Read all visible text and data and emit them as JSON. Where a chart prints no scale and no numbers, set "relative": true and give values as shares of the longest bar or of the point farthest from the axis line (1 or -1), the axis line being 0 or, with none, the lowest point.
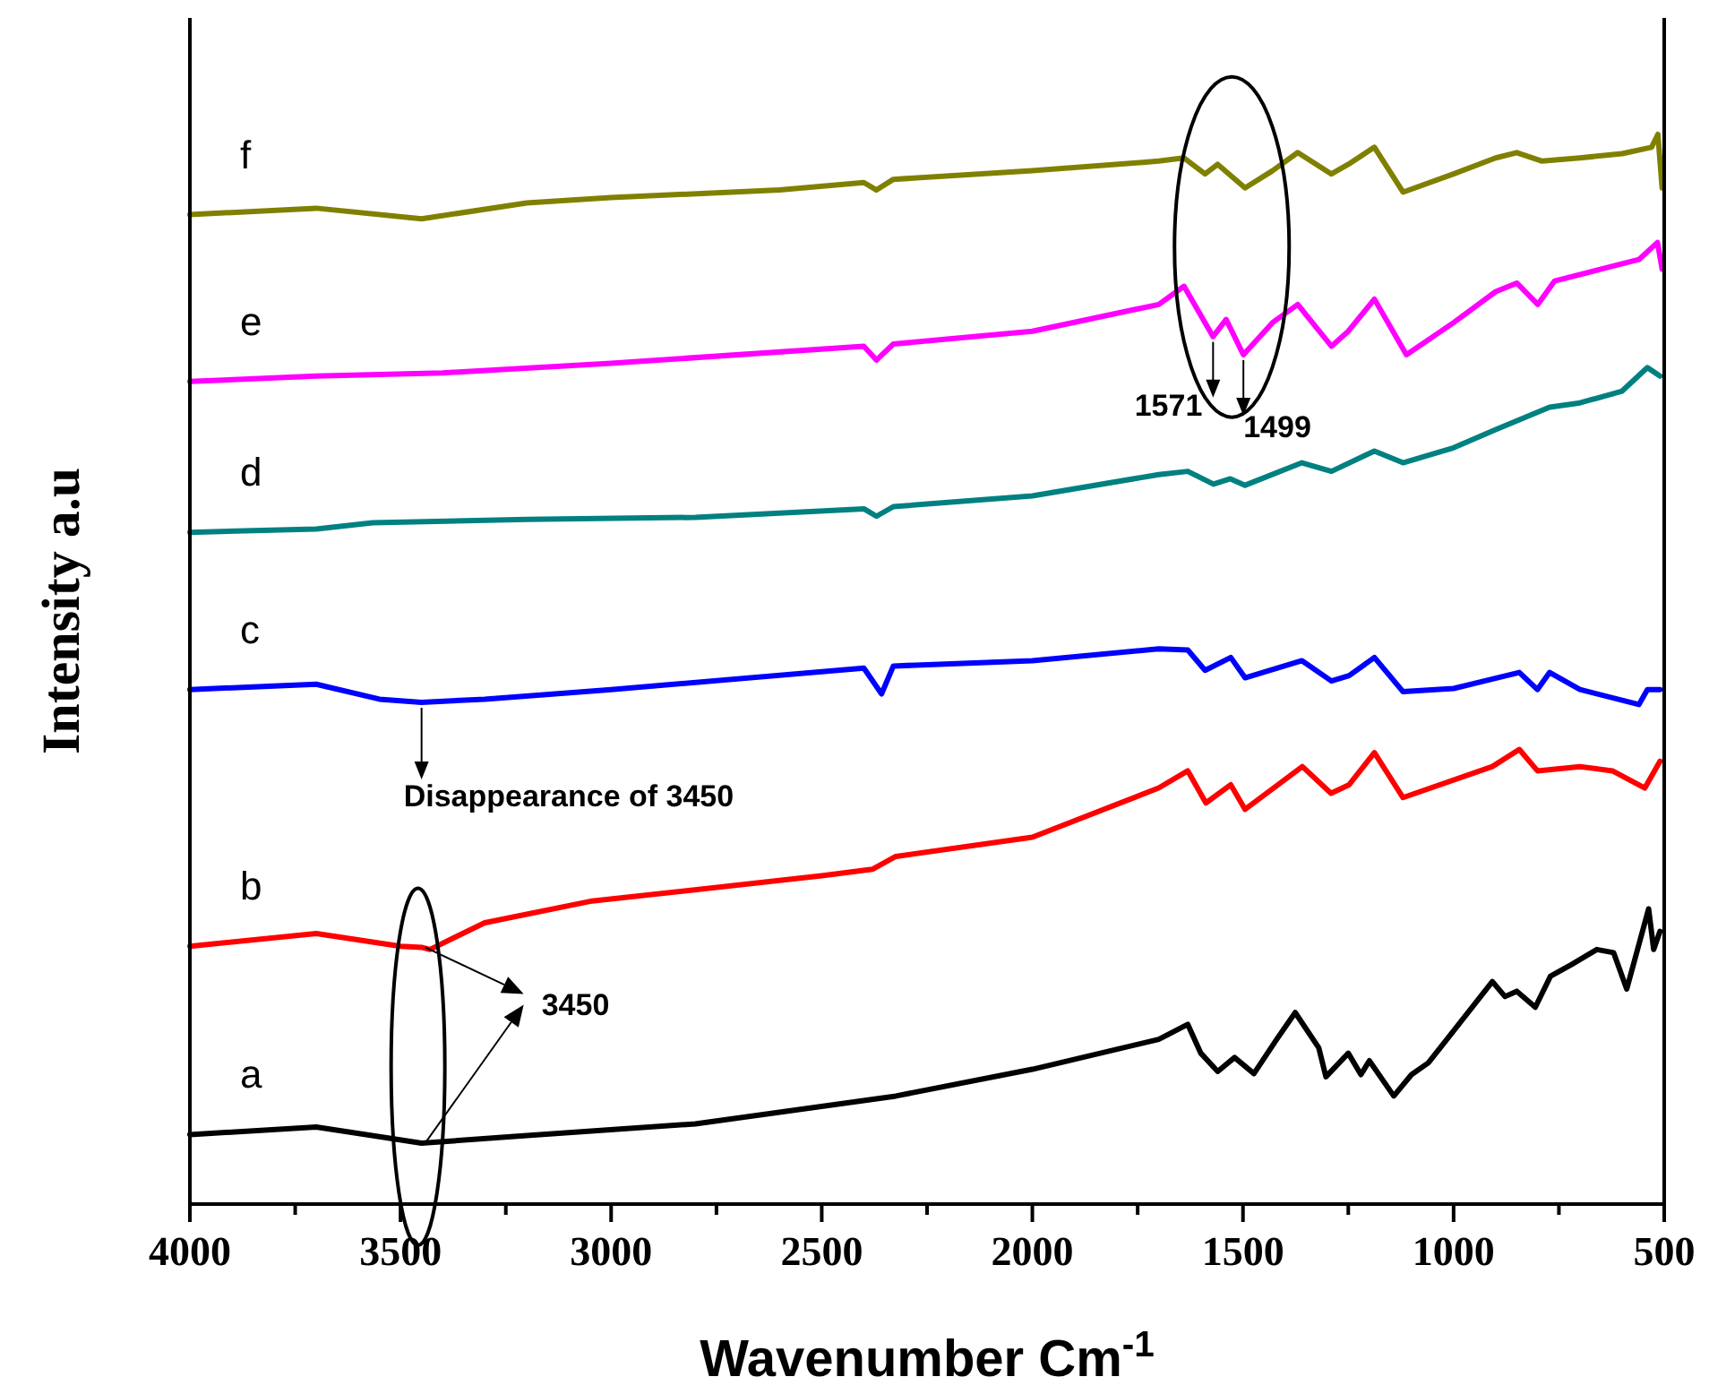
{
  "chart_data": {
    "type": "line",
    "relative": true,
    "xlabel": "Wavenumber Cm$^{-1}$",
    "ylabel": "Intensity a.u",
    "xlim": [
      4000,
      500
    ],
    "xticks": [
      4000,
      {
        "value": 3750,
        "label": null
      },
      3500,
      {
        "value": 3250,
        "label": null
      },
      3000,
      {
        "value": 2750,
        "label": null
      },
      2500,
      {
        "value": 2250,
        "label": null
      },
      2000,
      {
        "value": 1750,
        "label": null
      },
      1500,
      {
        "value": 1250,
        "label": null
      },
      1000,
      {
        "value": 750,
        "label": null
      },
      500
    ],
    "grid": false,
    "marker": "none",
    "line_style": "solid",
    "series": [
      {
        "name": "a",
        "color": "#000000",
        "x": [
          4000,
          3700,
          3450,
          3200,
          2800,
          2324,
          2000,
          1700,
          1631,
          1600,
          1560,
          1520,
          1474,
          1420,
          1376,
          1320,
          1303,
          1250,
          1220,
          1200,
          1142,
          1100,
          1060,
          1000,
          908,
          878,
          850,
          806,
          770,
          720,
          660,
          620,
          589,
          537,
          525,
          510
        ],
        "values": [
          0.065,
          0.072,
          0.057,
          0.064,
          0.075,
          0.101,
          0.126,
          0.154,
          0.168,
          0.141,
          0.124,
          0.137,
          0.122,
          0.154,
          0.179,
          0.146,
          0.119,
          0.141,
          0.121,
          0.134,
          0.101,
          0.121,
          0.132,
          0.162,
          0.208,
          0.194,
          0.199,
          0.184,
          0.213,
          0.224,
          0.238,
          0.235,
          0.201,
          0.276,
          0.238,
          0.255
        ]
      },
      {
        "name": "b",
        "color": "#ff0000",
        "x": [
          4000,
          3700,
          3500,
          3450,
          3430,
          3300,
          3050,
          2500,
          2380,
          2324,
          2000,
          1700,
          1631,
          1588,
          1529,
          1495,
          1359,
          1291,
          1248,
          1188,
          1120,
          908,
          844,
          801,
          700,
          623,
          546,
          510
        ],
        "values": [
          0.241,
          0.253,
          0.241,
          0.24,
          0.238,
          0.263,
          0.283,
          0.307,
          0.313,
          0.325,
          0.343,
          0.389,
          0.405,
          0.375,
          0.392,
          0.369,
          0.409,
          0.384,
          0.392,
          0.422,
          0.38,
          0.409,
          0.425,
          0.405,
          0.409,
          0.405,
          0.389,
          0.414
        ]
      },
      {
        "name": "c",
        "color": "#0000ff",
        "x": [
          4000,
          3700,
          3550,
          3450,
          3300,
          3000,
          2400,
          2358,
          2330,
          2000,
          1700,
          1631,
          1590,
          1529,
          1495,
          1360,
          1290,
          1248,
          1188,
          1120,
          1000,
          844,
          801,
          772,
          700,
          560,
          540,
          510
        ],
        "values": [
          0.481,
          0.486,
          0.472,
          0.469,
          0.472,
          0.481,
          0.501,
          0.477,
          0.503,
          0.508,
          0.519,
          0.518,
          0.499,
          0.511,
          0.492,
          0.508,
          0.489,
          0.494,
          0.511,
          0.479,
          0.482,
          0.497,
          0.481,
          0.497,
          0.481,
          0.467,
          0.481,
          0.481
        ]
      },
      {
        "name": "d",
        "color": "#008080",
        "x": [
          4000,
          3700,
          3566,
          3200,
          2800,
          2400,
          2370,
          2330,
          2000,
          1700,
          1631,
          1570,
          1530,
          1495,
          1360,
          1290,
          1188,
          1120,
          1000,
          900,
          772,
          700,
          600,
          540,
          510
        ],
        "values": [
          0.628,
          0.631,
          0.637,
          0.64,
          0.642,
          0.65,
          0.643,
          0.652,
          0.662,
          0.682,
          0.685,
          0.673,
          0.678,
          0.672,
          0.693,
          0.685,
          0.704,
          0.693,
          0.707,
          0.724,
          0.745,
          0.749,
          0.76,
          0.782,
          0.774
        ]
      },
      {
        "name": "e",
        "color": "#ff00ff",
        "x": [
          4000,
          3700,
          3400,
          3000,
          2400,
          2370,
          2330,
          2000,
          1700,
          1640,
          1571,
          1540,
          1499,
          1430,
          1370,
          1290,
          1250,
          1188,
          1112,
          1000,
          900,
          850,
          800,
          760,
          650,
          560,
          516,
          505
        ],
        "values": [
          0.769,
          0.774,
          0.777,
          0.786,
          0.802,
          0.789,
          0.804,
          0.816,
          0.841,
          0.858,
          0.811,
          0.827,
          0.794,
          0.824,
          0.841,
          0.802,
          0.816,
          0.846,
          0.794,
          0.824,
          0.853,
          0.861,
          0.841,
          0.863,
          0.874,
          0.883,
          0.899,
          0.874
        ]
      },
      {
        "name": "f",
        "color": "#808000",
        "x": [
          4000,
          3700,
          3450,
          3200,
          3000,
          2600,
          2400,
          2370,
          2330,
          2000,
          1700,
          1640,
          1590,
          1560,
          1495,
          1430,
          1370,
          1290,
          1250,
          1188,
          1120,
          1000,
          900,
          850,
          790,
          700,
          600,
          530,
          515,
          505
        ],
        "values": [
          0.925,
          0.931,
          0.921,
          0.936,
          0.941,
          0.948,
          0.955,
          0.948,
          0.958,
          0.966,
          0.975,
          0.978,
          0.963,
          0.972,
          0.95,
          0.966,
          0.983,
          0.963,
          0.972,
          0.988,
          0.946,
          0.963,
          0.978,
          0.983,
          0.975,
          0.978,
          0.982,
          0.988,
          1,
          0.95
        ]
      }
    ],
    "annotations": [
      {
        "text": "1571",
        "x": 1571,
        "y": 0.811
      },
      {
        "text": "1499",
        "x": 1499,
        "y": 0.794
      },
      {
        "text": "3450",
        "x": 3450,
        "y": 0.24
      },
      {
        "text": "Disappearance of 3450",
        "x": 3450,
        "y": 0.469
      }
    ]
  }
}
